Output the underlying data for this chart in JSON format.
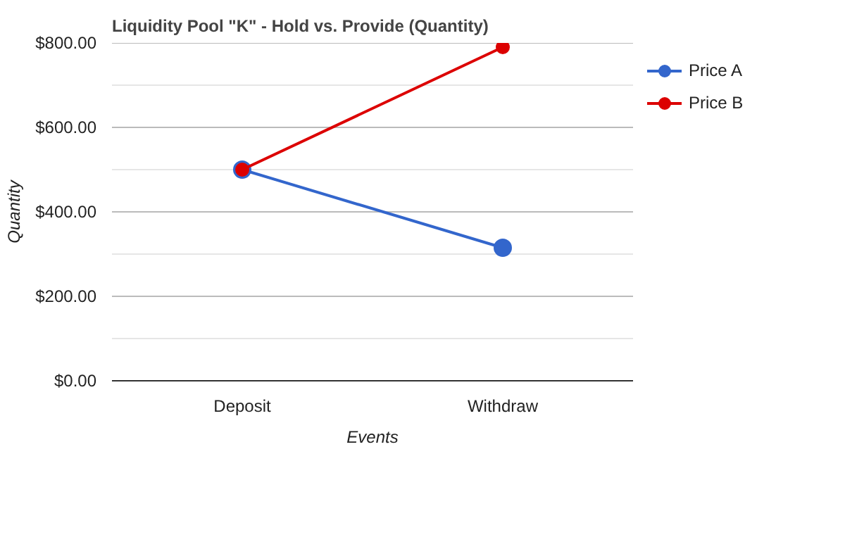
{
  "chart_data": {
    "type": "line",
    "title": "Liquidity Pool \"K\" - Hold vs. Provide (Quantity)",
    "xlabel": "Events",
    "ylabel": "Quantity",
    "categories": [
      "Deposit",
      "Withdraw"
    ],
    "series": [
      {
        "name": "Price A",
        "color": "#3366cc",
        "values": [
          500,
          315
        ]
      },
      {
        "name": "Price B",
        "color": "#dc0000",
        "values": [
          500,
          790
        ]
      }
    ],
    "ylim": [
      0,
      800
    ],
    "yticks": [
      {
        "value": 0,
        "label": "$0.00"
      },
      {
        "value": 100,
        "label": null
      },
      {
        "value": 200,
        "label": "$200.00"
      },
      {
        "value": 300,
        "label": null
      },
      {
        "value": 400,
        "label": "$400.00"
      },
      {
        "value": 500,
        "label": null
      },
      {
        "value": 600,
        "label": "$600.00"
      },
      {
        "value": 700,
        "label": null
      },
      {
        "value": 800,
        "label": "$800.00"
      }
    ],
    "grid": "y",
    "legend": "top right",
    "marker": "circle",
    "line_style": "solid"
  }
}
